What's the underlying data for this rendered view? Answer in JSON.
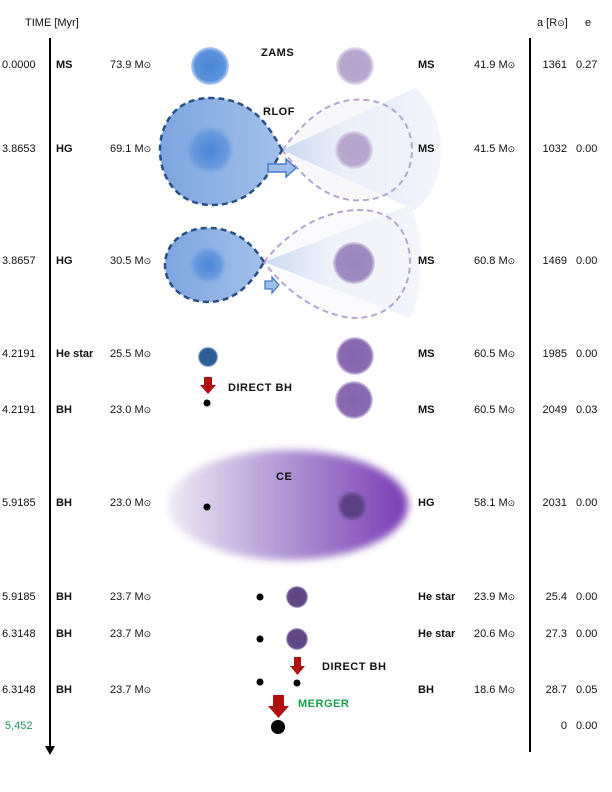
{
  "header": {
    "time_label": "TIME [Myr]",
    "sep_label": "a [R",
    "sep_close": "]",
    "ecc_label": "e"
  },
  "rows": [
    {
      "time": "0.0000",
      "type1": "MS",
      "mass1": "73.9",
      "type2": "MS",
      "mass2": "41.9",
      "a": "1361",
      "e": "0.27"
    },
    {
      "time": "3.8653",
      "type1": "HG",
      "mass1": "69.1",
      "type2": "MS",
      "mass2": "41.5",
      "a": "1032",
      "e": "0.00"
    },
    {
      "time": "3.8657",
      "type1": "HG",
      "mass1": "30.5",
      "type2": "MS",
      "mass2": "60.8",
      "a": "1469",
      "e": "0.00"
    },
    {
      "time": "4.2191",
      "type1": "He star",
      "mass1": "25.5",
      "type2": "MS",
      "mass2": "60.5",
      "a": "1985",
      "e": "0.00"
    },
    {
      "time": "4.2191",
      "type1": "BH",
      "mass1": "23.0",
      "type2": "MS",
      "mass2": "60.5",
      "a": "2049",
      "e": "0.03"
    },
    {
      "time": "5.9185",
      "type1": "BH",
      "mass1": "23.0",
      "type2": "HG",
      "mass2": "58.1",
      "a": "2031",
      "e": "0.00"
    },
    {
      "time": "5.9185",
      "type1": "BH",
      "mass1": "23.7",
      "type2": "He star",
      "mass2": "23.9",
      "a": "25.4",
      "e": "0.00"
    },
    {
      "time": "6.3148",
      "type1": "BH",
      "mass1": "23.7",
      "type2": "He star",
      "mass2": "20.6",
      "a": "27.3",
      "e": "0.00"
    },
    {
      "time": "6.3148",
      "type1": "BH",
      "mass1": "23.7",
      "type2": "BH",
      "mass2": "18.6",
      "a": "28.7",
      "e": "0.05"
    }
  ],
  "final_row": {
    "time": "5,452",
    "a": "0",
    "e": "0.00"
  },
  "events": {
    "zams": "ZAMS",
    "rlof": "RLOF",
    "direct_bh_1": "DIRECT BH",
    "ce": "CE",
    "direct_bh_2": "DIRECT BH",
    "merger": "MERGER"
  },
  "mass_unit": "M",
  "colors": {
    "primary": "#4a86d6",
    "primary_dark": "#2a4f86",
    "secondary": "#b2a2c9",
    "ce": "#7d3fb8",
    "arrow_red": "#b01010",
    "merger_green": "#18a04a"
  }
}
